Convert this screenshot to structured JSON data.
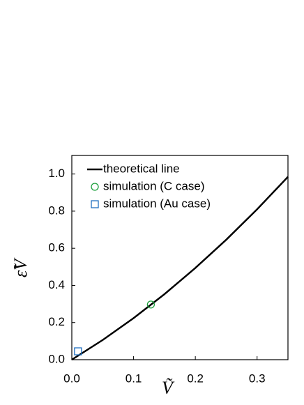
{
  "chart_data": {
    "type": "line",
    "xlabel": "Ṽ",
    "ylabel": "ε̃V",
    "xlim": [
      0,
      0.35
    ],
    "ylim": [
      0,
      1.1
    ],
    "xticks": [
      {
        "value": 0,
        "label": "0.0"
      },
      0.1,
      0.2,
      0.3
    ],
    "yticks": [
      {
        "value": 0,
        "label": "0.0"
      },
      0.2,
      0.4,
      0.6,
      0.8,
      {
        "value": 1,
        "label": "1.0"
      }
    ],
    "legend": "upper left",
    "series": [
      {
        "name": "theoretical line",
        "color": "#000000",
        "marker": "none",
        "x": [
          0,
          0.05,
          0.1,
          0.15,
          0.2,
          0.25,
          0.3,
          0.35
        ],
        "values": [
          0,
          0.106,
          0.224,
          0.353,
          0.494,
          0.646,
          0.81,
          0.985
        ]
      },
      {
        "name": "simulation (C case)",
        "color": "#1a9e3a",
        "marker": "circle",
        "x": [
          0.128
        ],
        "values": [
          0.297
        ]
      },
      {
        "name": "simulation (Au case)",
        "color": "#1f6fc0",
        "marker": "square",
        "x": [
          0.01
        ],
        "values": [
          0.045
        ]
      }
    ]
  }
}
